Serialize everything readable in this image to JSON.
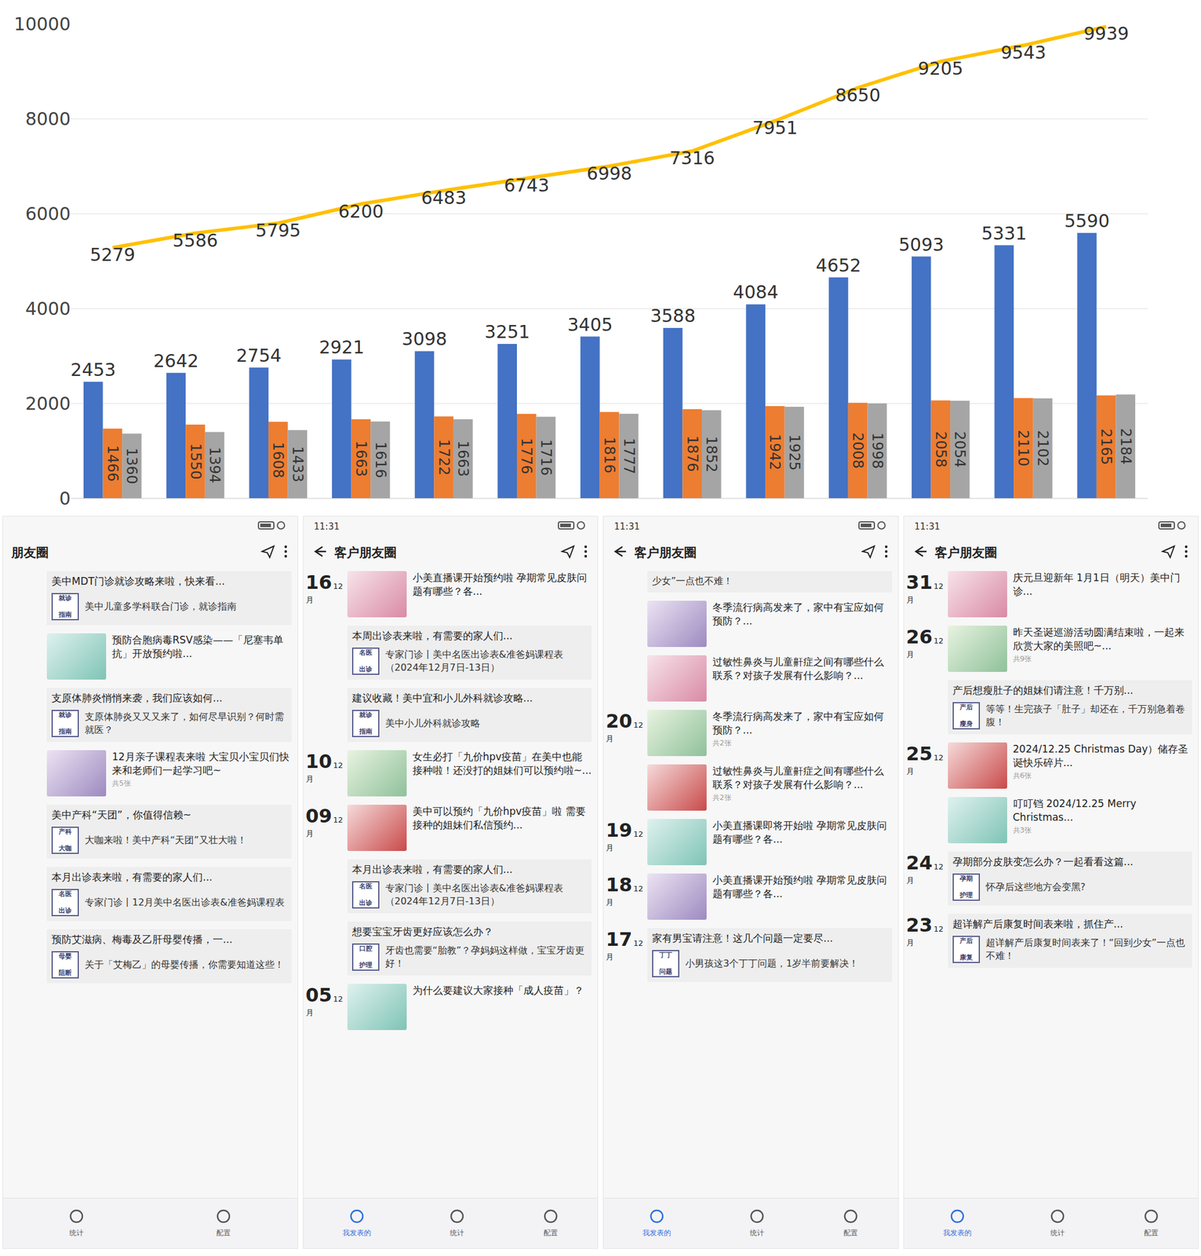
{
  "chart_data": {
    "type": "bar",
    "categories": [
      null,
      null,
      null,
      null,
      null,
      null,
      null,
      null,
      null,
      null,
      null,
      null,
      null
    ],
    "series": [
      {
        "type": "line",
        "color": "#FFC000",
        "values": [
          5279,
          5586,
          5795,
          6200,
          6483,
          6743,
          6998,
          7316,
          7951,
          8650,
          9205,
          9543,
          9939
        ]
      },
      {
        "type": "bar",
        "color": "#4472C4",
        "values": [
          2453,
          2642,
          2754,
          2921,
          3098,
          3251,
          3405,
          3588,
          4084,
          4652,
          5093,
          5331,
          5590
        ]
      },
      {
        "type": "bar",
        "color": "#ED7D31",
        "values": [
          1466,
          1550,
          1608,
          1663,
          1722,
          1776,
          1816,
          1876,
          1942,
          2008,
          2058,
          2110,
          2165
        ]
      },
      {
        "type": "bar",
        "color": "#A5A5A5",
        "values": [
          1360,
          1394,
          1433,
          1616,
          1663,
          1716,
          1777,
          1852,
          1925,
          1998,
          2054,
          2102,
          2184
        ]
      }
    ],
    "ylim": [
      0,
      10000
    ],
    "yticks": [
      0,
      2000,
      4000,
      6000,
      8000,
      10000
    ],
    "grid": true,
    "data_labels": true,
    "tick_labels": "y"
  },
  "screenshots": [
    {
      "header": "朋友圈",
      "posts": [
        {
          "link_title": "美中MDT门诊就诊攻略来啦，快来看...",
          "badge": "就诊指南",
          "link_text": "美中儿童多学科联合门诊，就诊指南"
        },
        {
          "image_text": "预防合胞病毒RSV感染——「尼塞韦单抗」开放预约啦..."
        },
        {
          "link_title": "支原体肺炎悄悄来袭，我们应该如何...",
          "badge": "就诊指南",
          "link_text": "支原体肺炎又又又来了，如何尽早识别？何时需就医？"
        },
        {
          "image_text": "12月亲子课程表来啦 大宝贝小宝贝们快来和老师们一起学习吧~",
          "count": "共5张"
        },
        {
          "link_title": "美中产科“天团”，你值得信赖~",
          "badge": "产科大咖",
          "link_text": "大咖来啦！美中产科“天团”又壮大啦！"
        },
        {
          "link_title": "本月出诊表来啦，有需要的家人们...",
          "badge": "名医出诊",
          "link_text": "专家门诊丨12月美中名医出诊表&准爸妈课程表"
        },
        {
          "link_title": "预防艾滋病、梅毒及乙肝母婴传播，一...",
          "badge": "母婴阻断",
          "link_text": "关于「艾梅乙」的母婴传播，你需要知道这些！"
        }
      ],
      "nav": [
        "统计",
        "配置"
      ]
    },
    {
      "time": "11:31",
      "header": "客户朋友圈",
      "posts": [
        {
          "day": "16",
          "month": "12月",
          "image_text": "小美直播课开始预约啦 孕期常见皮肤问题有哪些？各..."
        },
        {
          "link_title": "本周出诊表来啦，有需要的家人们...",
          "badge": "名医出诊",
          "link_text": "专家门诊丨美中名医出诊表&准爸妈课程表（2024年12月7日-13日）"
        },
        {
          "link_title": "建议收藏！美中宜和小儿外科就诊攻略...",
          "badge": "就诊指南",
          "link_text": "美中小儿外科就诊攻略"
        },
        {
          "day": "10",
          "month": "12月",
          "image_text": "女生必打「九价hpv疫苗」在美中也能接种啦！还没打的姐妹们可以预约啦~..."
        },
        {
          "day": "09",
          "month": "12月",
          "image_text": "美中可以预约「九价hpv疫苗」啦 需要接种的姐妹们私信预约..."
        },
        {
          "link_title": "本月出诊表来啦，有需要的家人们...",
          "badge": "名医出诊",
          "link_text": "专家门诊丨美中名医出诊表&准爸妈课程表（2024年12月7日-13日）"
        },
        {
          "link_title": "想要宝宝牙齿更好应该怎么办？",
          "badge": "口腔护理",
          "link_text": "牙齿也需要“胎教”？孕妈妈这样做，宝宝牙齿更好！"
        },
        {
          "day": "05",
          "month": "12月",
          "image_text": "为什么要建议大家接种「成人疫苗」？"
        }
      ],
      "nav": [
        "我发表的",
        "统计",
        "配置"
      ]
    },
    {
      "time": "11:31",
      "header": "客户朋友圈",
      "posts": [
        {
          "link_text": "少女”一点也不难！"
        },
        {
          "image_text": "冬季流行病高发来了，家中有宝应如何预防？..."
        },
        {
          "image_text": "过敏性鼻炎与儿童鼾症之间有哪些什么联系？对孩子发展有什么影响？..."
        },
        {
          "day": "20",
          "month": "12月",
          "image_text": "冬季流行病高发来了，家中有宝应如何预防？...",
          "count": "共2张"
        },
        {
          "image_text": "过敏性鼻炎与儿童鼾症之间有哪些什么联系？对孩子发展有什么影响？...",
          "count": "共2张"
        },
        {
          "day": "19",
          "month": "12月",
          "image_text": "小美直播课即将开始啦 孕期常见皮肤问题有哪些？各..."
        },
        {
          "day": "18",
          "month": "12月",
          "image_text": "小美直播课开始预约啦 孕期常见皮肤问题有哪些？各..."
        },
        {
          "day": "17",
          "month": "12月",
          "link_title": "家有男宝请注意！这几个问题一定要尽...",
          "badge": "丁丁问题",
          "link_text": "小男孩这3个丁丁问题，1岁半前要解决！"
        }
      ],
      "nav": [
        "我发表的",
        "统计",
        "配置"
      ]
    },
    {
      "time": "11:31",
      "header": "客户朋友圈",
      "posts": [
        {
          "day": "31",
          "month": "12月",
          "image_text": "庆元旦迎新年 1月1日（明天）美中门诊..."
        },
        {
          "day": "26",
          "month": "12月",
          "image_text": "昨天圣诞巡游活动圆满结束啦，一起来欣赏大家的美照吧~...",
          "count": "共9张"
        },
        {
          "link_title": "产后想瘦肚子的姐妹们请注意！千万别...",
          "badge": "产后瘦身",
          "link_text": "等等！生完孩子「肚子」却还在，千万别急着卷腹！"
        },
        {
          "day": "25",
          "month": "12月",
          "image_text": "2024/12.25 Christmas Day）储存圣诞快乐碎片...",
          "count": "共6张"
        },
        {
          "image_text": "叮叮铛 2024/12.25 Merry Christmas...",
          "count": "共3张"
        },
        {
          "day": "24",
          "month": "12月",
          "link_title": "孕期部分皮肤变怎么办？一起看看这篇...",
          "badge": "孕期护理",
          "link_text": "怀孕后这些地方会变黑?"
        },
        {
          "day": "23",
          "month": "12月",
          "link_title": "超详解产后康复时间表来啦，抓住产...",
          "badge": "产后康复",
          "link_text": "超详解产后康复时间表来了！“回到少女”一点也不难！"
        }
      ],
      "nav": [
        "我发表的",
        "统计",
        "配置"
      ]
    }
  ]
}
